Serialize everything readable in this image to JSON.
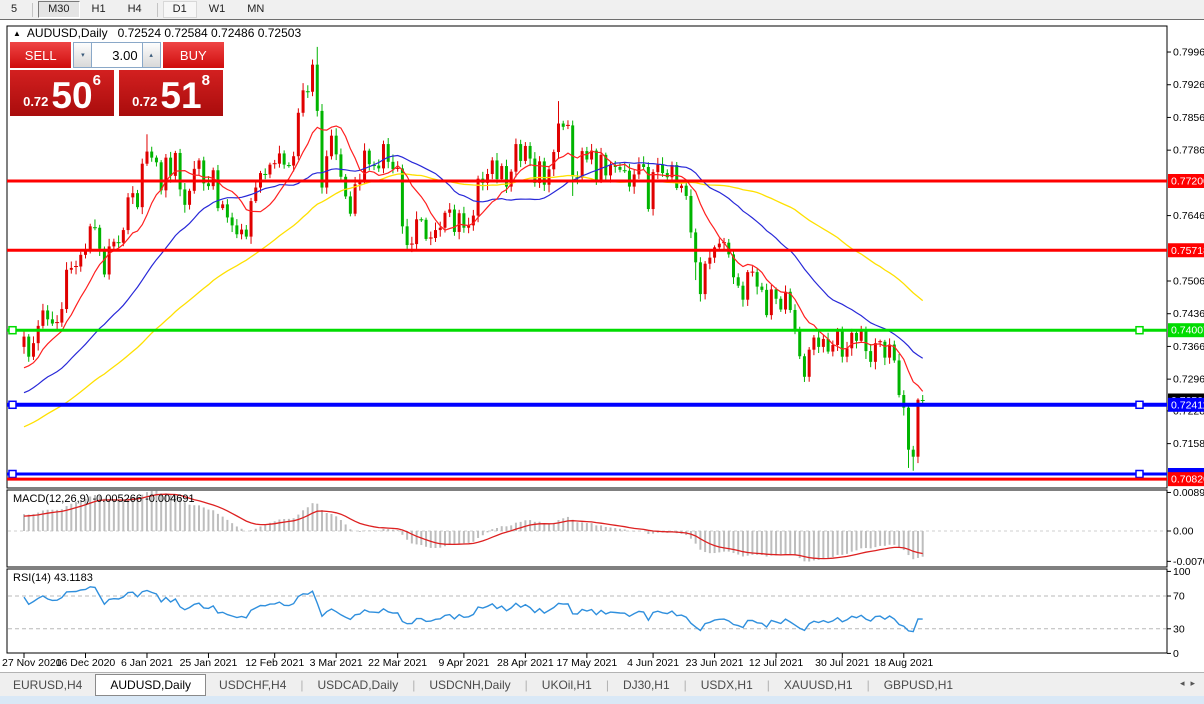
{
  "toolbar": {
    "items": [
      {
        "label": "5"
      },
      {
        "label": "M30",
        "pressed": true
      },
      {
        "label": "H1"
      },
      {
        "label": "H4"
      },
      {
        "label": "D1",
        "soft": true
      },
      {
        "label": "W1"
      },
      {
        "label": "MN"
      }
    ]
  },
  "chart": {
    "title_arrow": "▲",
    "title_symbol": "AUDUSD,Daily",
    "title_values": "0.72524 0.72584 0.72486 0.72503"
  },
  "trade_panel": {
    "sell_label": "SELL",
    "buy_label": "BUY",
    "volume": "3.00",
    "vol_down_glyph": "▾",
    "vol_up_glyph": "▴",
    "sell_price": {
      "small": "0.72",
      "big": "50",
      "sup": "6"
    },
    "buy_price": {
      "small": "0.72",
      "big": "51",
      "sup": "8"
    }
  },
  "price_axis": {
    "ticks": [
      {
        "label": "0.79960",
        "price": 0.7996
      },
      {
        "label": "0.79260",
        "price": 0.7926
      },
      {
        "label": "0.78560",
        "price": 0.7856
      },
      {
        "label": "0.77860",
        "price": 0.7786
      },
      {
        "label": "0.76460",
        "price": 0.7646
      },
      {
        "label": "0.75060",
        "price": 0.7506
      },
      {
        "label": "0.74360",
        "price": 0.7436
      },
      {
        "label": "0.73660",
        "price": 0.7366
      },
      {
        "label": "0.72960",
        "price": 0.7296
      },
      {
        "label": "0.72280",
        "price": 0.7228
      },
      {
        "label": "0.71580",
        "price": 0.7158
      }
    ],
    "current_price_label": {
      "label": "0.72503",
      "price": 0.72503,
      "color": "#000000"
    }
  },
  "hlines": [
    {
      "price": 0.772,
      "color": "#ff0000",
      "width": 3,
      "label": "0.77200",
      "handles": false
    },
    {
      "price": 0.75718,
      "color": "#ff0000",
      "width": 3,
      "label": "0.75718",
      "handles": false
    },
    {
      "price": 0.74007,
      "color": "#00dc00",
      "width": 3,
      "label": "0.74007",
      "handles": true
    },
    {
      "price": 0.72411,
      "color": "#0000ff",
      "width": 4,
      "label": "0.72411",
      "handles": true
    },
    {
      "price": 0.7093,
      "color": "#0000ff",
      "width": 3,
      "label": "",
      "handles": true
    },
    {
      "price": 0.7082,
      "color": "#ff0000",
      "width": 3,
      "label": "0.70820",
      "handles": false
    }
  ],
  "indicators": {
    "macd": {
      "label": "MACD(12,26,9) -0.005266 -0.004691",
      "params": [
        12,
        26,
        9
      ],
      "values_text": [
        "-0.005266",
        "-0.004691"
      ],
      "axis": [
        {
          "label": "0.00890",
          "value": 0.0089
        },
        {
          "label": "0.00",
          "value": 0
        },
        {
          "label": "-0.00701",
          "value": -0.00701
        }
      ],
      "derived_from": "chart_data.closes"
    },
    "rsi": {
      "label": "RSI(14) 43.1183",
      "period": 14,
      "value_text": "43.1183",
      "levels": [
        70,
        30
      ],
      "axis": [
        {
          "label": "100",
          "value": 100
        },
        {
          "label": "70",
          "value": 70
        },
        {
          "label": "30",
          "value": 30
        },
        {
          "label": "0",
          "value": 0
        }
      ],
      "derived_from": "chart_data.closes"
    }
  },
  "chart_data": {
    "type": "candlestick",
    "symbol": "AUDUSD",
    "timeframe": "Daily",
    "price_range_visible": [
      0.7082,
      0.8007
    ],
    "up_color": "#e00000",
    "down_color": "#00b400",
    "ma_colors": {
      "fast_red": "#ff2020",
      "mid_blue": "#2828d8",
      "slow_yellow": "#ffe000"
    },
    "first_open": 0.7365,
    "closes": [
      0.7387,
      0.7344,
      0.7373,
      0.741,
      0.7443,
      0.7424,
      0.7415,
      0.7417,
      0.7446,
      0.753,
      0.7534,
      0.7537,
      0.7562,
      0.757,
      0.7623,
      0.762,
      0.7575,
      0.752,
      0.758,
      0.759,
      0.7588,
      0.7615,
      0.7685,
      0.7694,
      0.7664,
      0.7757,
      0.7783,
      0.777,
      0.776,
      0.77,
      0.777,
      0.7731,
      0.778,
      0.7702,
      0.7669,
      0.7699,
      0.7746,
      0.7764,
      0.7715,
      0.7709,
      0.7743,
      0.7662,
      0.767,
      0.7642,
      0.7625,
      0.7606,
      0.7616,
      0.7601,
      0.7677,
      0.7706,
      0.7737,
      0.7734,
      0.7755,
      0.7757,
      0.7779,
      0.7755,
      0.7753,
      0.7773,
      0.7866,
      0.7914,
      0.7911,
      0.7969,
      0.787,
      0.7706,
      0.7773,
      0.7817,
      0.7777,
      0.7729,
      0.7687,
      0.765,
      0.7713,
      0.7722,
      0.7785,
      0.7756,
      0.7753,
      0.7747,
      0.7799,
      0.7761,
      0.7745,
      0.7747,
      0.7623,
      0.7583,
      0.7585,
      0.7638,
      0.7637,
      0.7596,
      0.7598,
      0.7615,
      0.762,
      0.7652,
      0.7659,
      0.7611,
      0.7651,
      0.762,
      0.7625,
      0.7646,
      0.7725,
      0.7716,
      0.7735,
      0.7764,
      0.7724,
      0.7752,
      0.7708,
      0.774,
      0.7799,
      0.7763,
      0.7795,
      0.7768,
      0.7716,
      0.7762,
      0.7712,
      0.7745,
      0.7782,
      0.7843,
      0.7836,
      0.7839,
      0.773,
      0.7727,
      0.7784,
      0.7766,
      0.7785,
      0.7723,
      0.7776,
      0.7732,
      0.7754,
      0.775,
      0.7744,
      0.7742,
      0.7708,
      0.7734,
      0.7756,
      0.775,
      0.766,
      0.7739,
      0.7755,
      0.7737,
      0.7728,
      0.7754,
      0.7705,
      0.771,
      0.7688,
      0.761,
      0.7546,
      0.7478,
      0.7543,
      0.7556,
      0.7578,
      0.7586,
      0.7588,
      0.7563,
      0.7514,
      0.7496,
      0.7466,
      0.7525,
      0.7525,
      0.7494,
      0.7487,
      0.7433,
      0.7488,
      0.7468,
      0.7445,
      0.7483,
      0.7444,
      0.7399,
      0.7345,
      0.7301,
      0.7359,
      0.7385,
      0.7365,
      0.7382,
      0.7355,
      0.7369,
      0.7398,
      0.7344,
      0.7362,
      0.7395,
      0.7378,
      0.74,
      0.7356,
      0.7333,
      0.7373,
      0.7376,
      0.7342,
      0.737,
      0.7336,
      0.7262,
      0.7235,
      0.7145,
      0.713,
      0.7252,
      0.72503
    ],
    "key_extremes": {
      "26": {
        "high": 0.782
      },
      "61": {
        "high": 0.798
      },
      "62": {
        "high": 0.8007,
        "low": 0.7858
      },
      "63": {
        "low": 0.7693
      },
      "113": {
        "high": 0.7891
      },
      "116": {
        "low": 0.7688
      },
      "142": {
        "low": 0.7508
      },
      "143": {
        "low": 0.7462
      },
      "165": {
        "low": 0.729
      },
      "177": {
        "high": 0.741
      },
      "187": {
        "low": 0.7106
      },
      "188": {
        "low": 0.71
      },
      "189": {
        "high": 0.7255
      },
      "190": {
        "high": 0.7262,
        "low": 0.7242
      }
    },
    "date_ticks": [
      {
        "label": "27 Nov 2020",
        "bar": 0
      },
      {
        "label": "16 Dec 2020",
        "bar": 13
      },
      {
        "label": "6 Jan 2021",
        "bar": 26
      },
      {
        "label": "25 Jan 2021",
        "bar": 39
      },
      {
        "label": "12 Feb 2021",
        "bar": 53
      },
      {
        "label": "3 Mar 2021",
        "bar": 66
      },
      {
        "label": "22 Mar 2021",
        "bar": 79
      },
      {
        "label": "9 Apr 2021",
        "bar": 93
      },
      {
        "label": "28 Apr 2021",
        "bar": 106
      },
      {
        "label": "17 May 2021",
        "bar": 119
      },
      {
        "label": "4 Jun 2021",
        "bar": 133
      },
      {
        "label": "23 Jun 2021",
        "bar": 146
      },
      {
        "label": "12 Jul 2021",
        "bar": 159
      },
      {
        "label": "30 Jul 2021",
        "bar": 173
      },
      {
        "label": "18 Aug 2021",
        "bar": 186
      }
    ]
  },
  "tabs": {
    "items": [
      {
        "label": "EURUSD,H4"
      },
      {
        "label": "AUDUSD,Daily",
        "active": true
      },
      {
        "label": "USDCHF,H4"
      },
      {
        "label": "USDCAD,Daily"
      },
      {
        "label": "USDCNH,Daily"
      },
      {
        "label": "UKOil,H1"
      },
      {
        "label": "DJ30,H1"
      },
      {
        "label": "USDX,H1"
      },
      {
        "label": "XAUUSD,H1"
      },
      {
        "label": "GBPUSD,H1"
      }
    ],
    "scroll_left": "◂",
    "scroll_right": "▸"
  }
}
